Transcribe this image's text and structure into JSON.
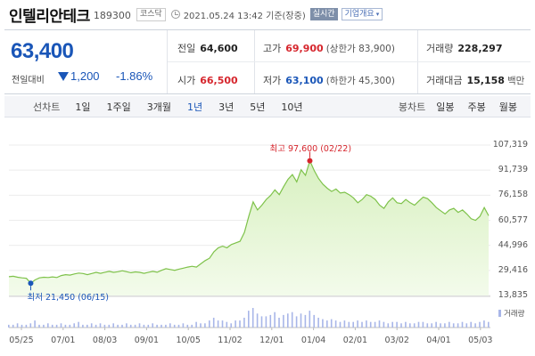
{
  "header": {
    "stock_name": "인텔리안테크",
    "stock_code": "189300",
    "market": "코스닥",
    "datetime": "2021.05.24 13:42 기준(장중)",
    "realtime_label": "실시간",
    "company_info_label": "기업개요",
    "icons": [
      "clock-icon",
      "chevron-down-icon"
    ]
  },
  "summary": {
    "current_price": "63,400",
    "prev_day_label": "전일대비",
    "change_direction": "down",
    "change_value": "1,200",
    "change_percent": "-1.86%",
    "prev_close": {
      "label": "전일",
      "value": "64,600"
    },
    "high": {
      "label": "고가",
      "value": "69,900",
      "sub": "(상한가 83,900)"
    },
    "volume": {
      "label": "거래량",
      "value": "228,297"
    },
    "open": {
      "label": "시가",
      "value": "66,500"
    },
    "low": {
      "label": "저가",
      "value": "63,100",
      "sub": "(하한가 45,300)"
    },
    "trade_amount": {
      "label": "거래대금",
      "value": "15,158",
      "unit": "백만"
    }
  },
  "period_tabs": {
    "label": "선차트",
    "tabs": [
      "1일",
      "1주일",
      "3개월",
      "1년",
      "3년",
      "5년",
      "10년"
    ],
    "active": "1년",
    "candle_label": "봉차트",
    "candle_tabs": [
      "일봉",
      "주봉",
      "월봉"
    ]
  },
  "chart_data": {
    "type": "area",
    "x_tick_labels": [
      "05/25",
      "07/01",
      "08/03",
      "09/01",
      "10/05",
      "11/02",
      "12/01",
      "01/04",
      "02/01",
      "03/02",
      "04/01",
      "05/03"
    ],
    "y_tick_labels": [
      "107,319",
      "91,739",
      "76,158",
      "60,577",
      "44,996",
      "29,416",
      "13,835"
    ],
    "ylim": [
      13835,
      107319
    ],
    "high_annotation": "최고 97,600 (02/22)",
    "low_annotation": "최저 21,450 (06/15)",
    "high_point": {
      "date": "02/22",
      "value": 97600
    },
    "low_point": {
      "date": "06/15",
      "value": 21450
    },
    "volume_legend": "거래량",
    "series": [
      {
        "values": [
          25500,
          25800,
          25200,
          24800,
          24500,
          21450,
          23500,
          24800,
          25200,
          25000,
          25400,
          25000,
          26200,
          26800,
          26500,
          27200,
          27800,
          27500,
          26800,
          27500,
          28200,
          27600,
          28300,
          28800,
          28200,
          28600,
          29200,
          28600,
          28000,
          28500,
          28200,
          27600,
          28300,
          28800,
          28300,
          29500,
          30500,
          30000,
          29500,
          30200,
          30800,
          31500,
          32000,
          31500,
          33500,
          35500,
          37000,
          41000,
          43500,
          44500,
          43500,
          45500,
          46500,
          47500,
          53000,
          63000,
          72000,
          67000,
          70000,
          73500,
          76000,
          79500,
          76500,
          81500,
          86000,
          89000,
          84500,
          92000,
          88500,
          97600,
          91500,
          86500,
          83000,
          80500,
          78500,
          80000,
          77500,
          78000,
          76500,
          74500,
          71500,
          73500,
          76500,
          75500,
          73500,
          70000,
          68000,
          72000,
          74500,
          71500,
          71000,
          73500,
          71500,
          70000,
          72500,
          75000,
          74000,
          71500,
          68500,
          66500,
          64500,
          67000,
          68000,
          65500,
          67000,
          64500,
          61500,
          60500,
          63000,
          68500,
          63400
        ],
        "volume": [
          2,
          2,
          3,
          2,
          2,
          3,
          5,
          2,
          2,
          3,
          2,
          2,
          3,
          2,
          2,
          3,
          4,
          2,
          2,
          3,
          2,
          3,
          2,
          2,
          3,
          2,
          2,
          3,
          2,
          2,
          3,
          2,
          2,
          3,
          2,
          2,
          2,
          3,
          2,
          2,
          3,
          2,
          2,
          4,
          3,
          3,
          5,
          7,
          5,
          5,
          4,
          3,
          5,
          5,
          7,
          12,
          14,
          10,
          8,
          8,
          9,
          11,
          7,
          9,
          10,
          11,
          8,
          10,
          9,
          12,
          9,
          7,
          6,
          5,
          6,
          5,
          4,
          5,
          4,
          4,
          5,
          4,
          5,
          4,
          4,
          5,
          4,
          3,
          4,
          4,
          3,
          4,
          3,
          3,
          4,
          4,
          3,
          3,
          4,
          3,
          3,
          4,
          3,
          3,
          4,
          3,
          4,
          3,
          4,
          5,
          4
        ]
      }
    ]
  },
  "colors": {
    "up": "#d6262d",
    "down": "#1a56b8",
    "area_line": "#7ec24a",
    "area_fill": "#d8f0c0",
    "volume": "#a8b6e8"
  }
}
